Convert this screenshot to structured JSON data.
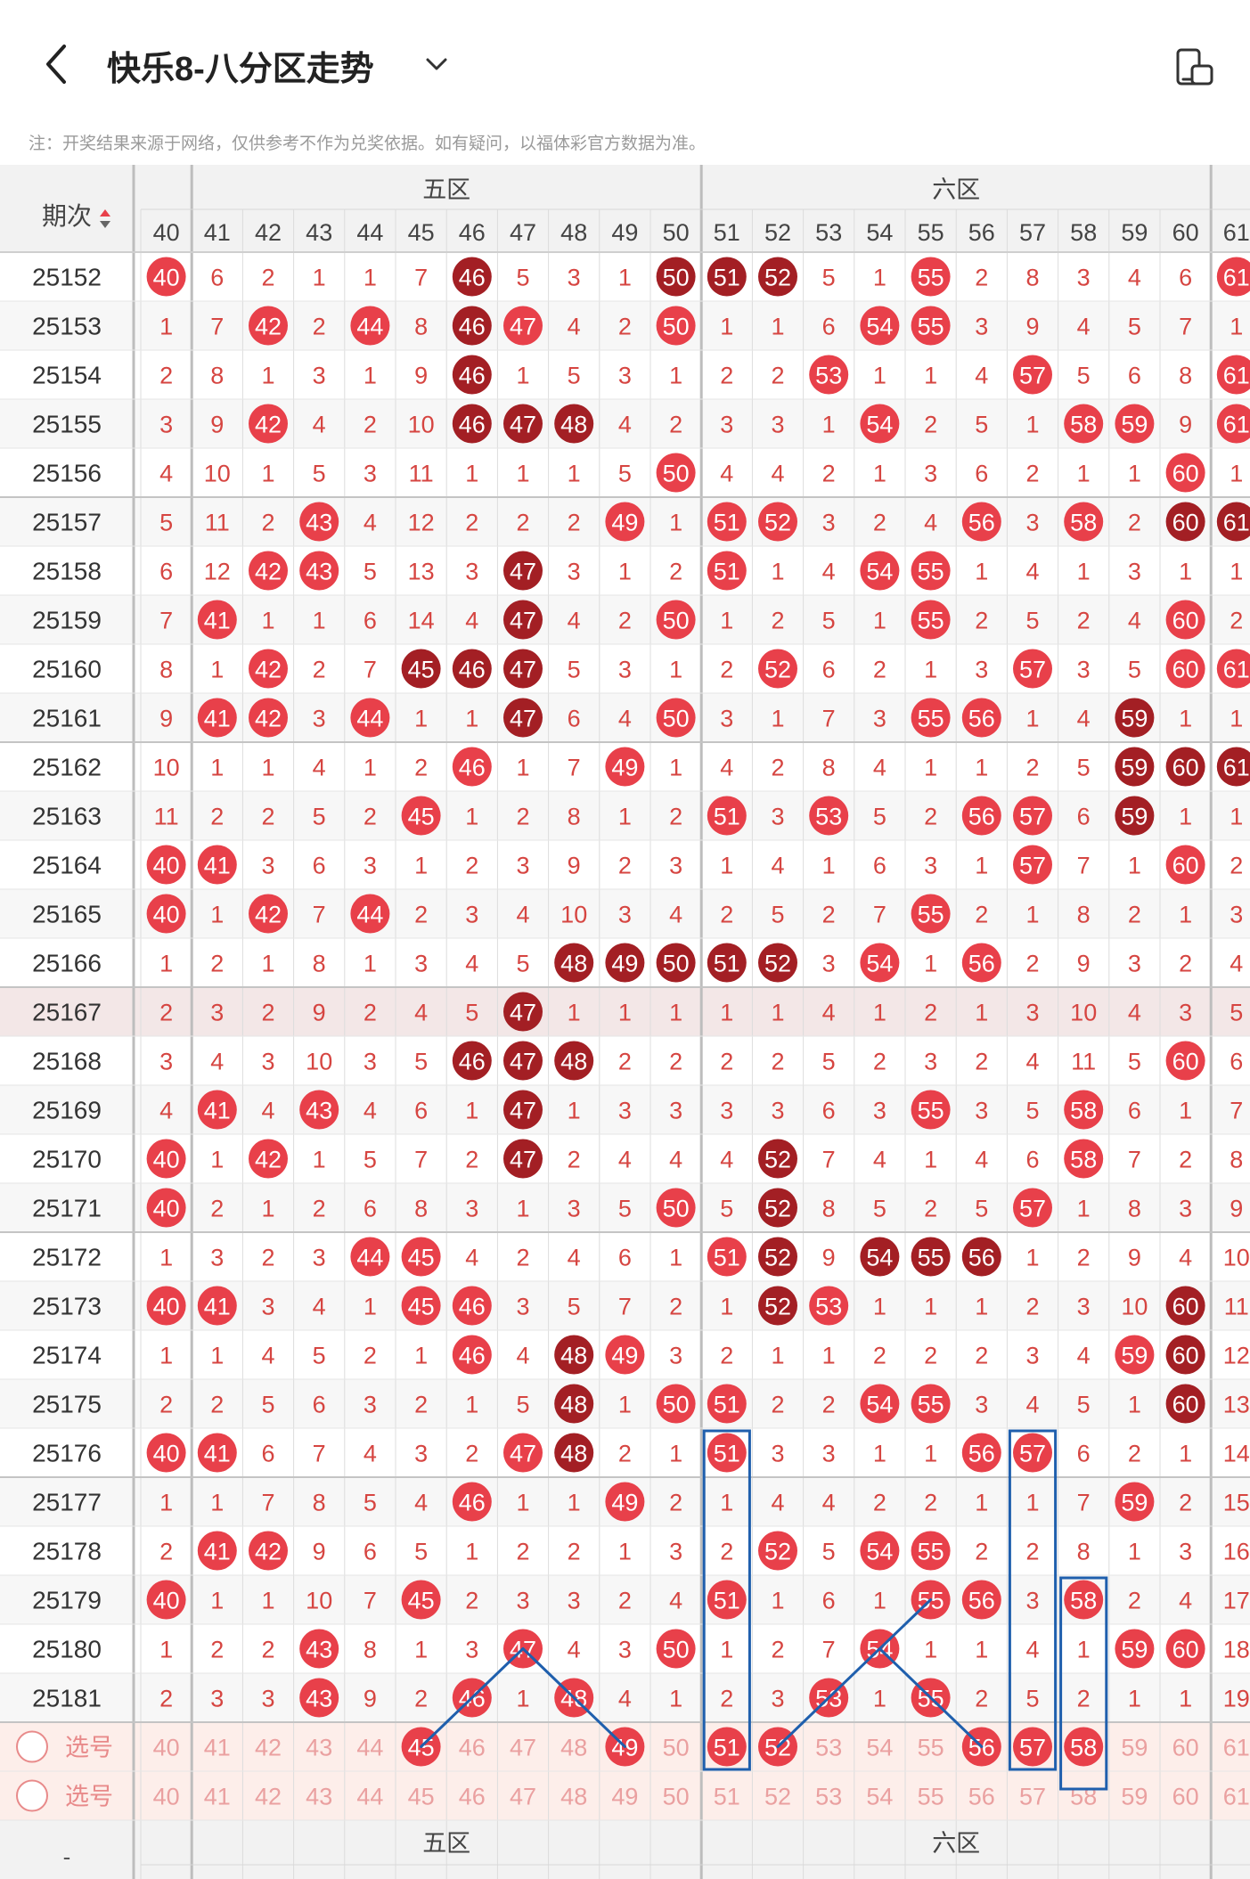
{
  "header": {
    "title": "快乐8-八分区走势",
    "notice": "注：开奖结果来源于网络，仅供参考不作为兑奖依据。如有疑问，以福体彩官方数据为准。",
    "back_icon": "chevron-left-icon",
    "title_dropdown_icon": "chevron-down-icon",
    "orientation_icon": "rotate-screen-icon"
  },
  "table": {
    "period_header": "期次",
    "sort_icon": "sort-up-down-icon",
    "zones": [
      {
        "name": "五区",
        "from": 41,
        "to": 50
      },
      {
        "name": "六区",
        "from": 51,
        "to": 60
      }
    ],
    "columns": [
      40,
      41,
      42,
      43,
      44,
      45,
      46,
      47,
      48,
      49,
      50,
      51,
      52,
      53,
      54,
      55,
      56,
      57,
      58,
      59,
      60,
      61
    ],
    "rows": [
      {
        "period": "25152",
        "cells": [
          "h",
          6,
          2,
          1,
          1,
          7,
          "d",
          "5",
          3,
          1,
          "d",
          "d",
          "d",
          5,
          1,
          "h",
          2,
          8,
          3,
          4,
          6,
          "h"
        ]
      },
      {
        "period": "25153",
        "cells": [
          1,
          7,
          "h",
          2,
          "h",
          8,
          "d",
          "h",
          4,
          2,
          "h",
          1,
          1,
          6,
          "h",
          "h",
          3,
          9,
          4,
          5,
          7,
          1
        ]
      },
      {
        "period": "25154",
        "cells": [
          2,
          8,
          1,
          3,
          1,
          9,
          "d",
          1,
          5,
          3,
          1,
          2,
          2,
          "h",
          1,
          1,
          4,
          "h",
          5,
          6,
          8,
          "h"
        ]
      },
      {
        "period": "25155",
        "cells": [
          3,
          9,
          "h",
          4,
          2,
          10,
          "d",
          "d",
          "d",
          4,
          2,
          3,
          3,
          1,
          "h",
          2,
          5,
          1,
          "h",
          "h",
          9,
          "h"
        ]
      },
      {
        "period": "25156",
        "cells": [
          4,
          10,
          1,
          5,
          3,
          11,
          1,
          1,
          1,
          5,
          "h",
          4,
          4,
          2,
          1,
          3,
          6,
          2,
          1,
          1,
          "h",
          1
        ]
      },
      {
        "period": "25157",
        "cells": [
          5,
          11,
          2,
          "h",
          4,
          12,
          2,
          2,
          2,
          "h",
          1,
          "h",
          "h",
          3,
          2,
          4,
          "h",
          3,
          "h",
          2,
          "d",
          "d"
        ]
      },
      {
        "period": "25158",
        "cells": [
          6,
          12,
          "h",
          "h",
          5,
          13,
          3,
          "d",
          3,
          1,
          2,
          "h",
          1,
          4,
          "h",
          "h",
          1,
          4,
          1,
          3,
          1,
          1
        ]
      },
      {
        "period": "25159",
        "cells": [
          7,
          "h",
          1,
          1,
          6,
          14,
          4,
          "d",
          4,
          2,
          "h",
          1,
          2,
          5,
          1,
          "h",
          2,
          5,
          2,
          4,
          "h",
          2
        ]
      },
      {
        "period": "25160",
        "cells": [
          8,
          1,
          "h",
          2,
          7,
          "d",
          "d",
          "d",
          5,
          3,
          1,
          2,
          "h",
          6,
          2,
          1,
          3,
          "h",
          3,
          5,
          "h",
          "h"
        ]
      },
      {
        "period": "25161",
        "cells": [
          9,
          "h",
          "h",
          3,
          "h",
          1,
          1,
          "d",
          6,
          4,
          "h",
          3,
          1,
          7,
          3,
          "h",
          "h",
          1,
          4,
          "d",
          1,
          1
        ]
      },
      {
        "period": "25162",
        "cells": [
          10,
          1,
          1,
          4,
          1,
          2,
          "h",
          1,
          7,
          "h",
          1,
          4,
          2,
          8,
          4,
          1,
          1,
          2,
          5,
          "d",
          "d",
          "d"
        ]
      },
      {
        "period": "25163",
        "cells": [
          11,
          2,
          2,
          5,
          2,
          "h",
          1,
          2,
          8,
          1,
          2,
          "h",
          3,
          "h",
          5,
          2,
          "h",
          "h",
          6,
          "d",
          1,
          1
        ]
      },
      {
        "period": "25164",
        "cells": [
          "h",
          "h",
          3,
          6,
          3,
          1,
          2,
          3,
          9,
          2,
          3,
          1,
          4,
          1,
          6,
          3,
          1,
          "h",
          7,
          1,
          "h",
          2
        ]
      },
      {
        "period": "25165",
        "cells": [
          "h",
          1,
          "h",
          7,
          "h",
          2,
          3,
          4,
          10,
          3,
          4,
          2,
          5,
          2,
          7,
          "h",
          2,
          1,
          8,
          2,
          1,
          3
        ]
      },
      {
        "period": "25166",
        "cells": [
          1,
          2,
          1,
          8,
          1,
          3,
          4,
          5,
          "d",
          "d",
          "d",
          "d",
          "d",
          3,
          "h",
          1,
          "h",
          2,
          9,
          3,
          2,
          4
        ]
      },
      {
        "period": "25167",
        "cells": [
          2,
          3,
          2,
          9,
          2,
          4,
          5,
          "d",
          1,
          1,
          1,
          1,
          1,
          4,
          1,
          2,
          1,
          3,
          10,
          4,
          3,
          5
        ]
      },
      {
        "period": "25168",
        "cells": [
          3,
          4,
          3,
          10,
          3,
          5,
          "d",
          "d",
          "d",
          2,
          2,
          2,
          2,
          5,
          2,
          3,
          2,
          4,
          11,
          5,
          "h",
          6
        ]
      },
      {
        "period": "25169",
        "cells": [
          4,
          "h",
          4,
          "h",
          4,
          6,
          1,
          "d",
          1,
          3,
          3,
          3,
          3,
          6,
          3,
          "h",
          3,
          5,
          "h",
          6,
          1,
          7
        ]
      },
      {
        "period": "25170",
        "cells": [
          "h",
          1,
          "h",
          1,
          5,
          7,
          2,
          "d",
          2,
          4,
          4,
          4,
          "d",
          7,
          4,
          1,
          4,
          6,
          "h",
          7,
          2,
          8
        ]
      },
      {
        "period": "25171",
        "cells": [
          "h",
          2,
          1,
          2,
          6,
          8,
          3,
          1,
          3,
          5,
          "h",
          5,
          "d",
          8,
          5,
          2,
          5,
          "h",
          1,
          8,
          3,
          9
        ]
      },
      {
        "period": "25172",
        "cells": [
          1,
          3,
          2,
          3,
          "h",
          "h",
          4,
          2,
          4,
          6,
          1,
          "h",
          "d",
          9,
          "d",
          "d",
          "d",
          1,
          2,
          9,
          4,
          10
        ]
      },
      {
        "period": "25173",
        "cells": [
          "h",
          "h",
          3,
          4,
          1,
          "h",
          "h",
          3,
          5,
          7,
          2,
          1,
          "d",
          "h",
          1,
          1,
          1,
          2,
          3,
          10,
          "d",
          11
        ]
      },
      {
        "period": "25174",
        "cells": [
          1,
          1,
          4,
          5,
          2,
          1,
          "h",
          4,
          "d",
          "h",
          3,
          2,
          1,
          1,
          2,
          2,
          2,
          3,
          4,
          "h",
          "d",
          12
        ]
      },
      {
        "period": "25175",
        "cells": [
          2,
          2,
          5,
          6,
          3,
          2,
          1,
          5,
          "d",
          1,
          "h",
          "h",
          2,
          2,
          "h",
          "h",
          3,
          4,
          5,
          1,
          "d",
          13
        ]
      },
      {
        "period": "25176",
        "cells": [
          "h",
          "h",
          6,
          7,
          4,
          3,
          2,
          "h",
          "d",
          2,
          1,
          "h",
          3,
          3,
          1,
          1,
          "h",
          "h",
          6,
          2,
          1,
          14
        ]
      },
      {
        "period": "25177",
        "cells": [
          1,
          1,
          7,
          8,
          5,
          4,
          "h",
          1,
          1,
          "h",
          2,
          1,
          4,
          4,
          2,
          2,
          1,
          1,
          7,
          "h",
          2,
          15
        ]
      },
      {
        "period": "25178",
        "cells": [
          2,
          "h",
          "h",
          9,
          6,
          5,
          1,
          2,
          2,
          1,
          3,
          2,
          "h",
          5,
          "h",
          "h",
          2,
          2,
          8,
          1,
          3,
          16
        ]
      },
      {
        "period": "25179",
        "cells": [
          "h",
          1,
          1,
          10,
          7,
          "h",
          2,
          3,
          3,
          2,
          4,
          "h",
          1,
          6,
          1,
          "h",
          "h",
          3,
          "h",
          2,
          4,
          17
        ]
      },
      {
        "period": "25180",
        "cells": [
          1,
          2,
          2,
          "h",
          8,
          1,
          3,
          "h",
          4,
          3,
          "h",
          1,
          2,
          7,
          "h",
          1,
          1,
          4,
          1,
          "h",
          "h",
          18
        ]
      },
      {
        "period": "25181",
        "cells": [
          2,
          3,
          3,
          "h",
          9,
          2,
          "h",
          1,
          "h",
          4,
          1,
          2,
          3,
          "h",
          1,
          "h",
          2,
          5,
          2,
          1,
          1,
          19
        ]
      }
    ],
    "select_rows": [
      {
        "label": "选号",
        "radio_icon": "radio-circle-icon",
        "selected": [
          45,
          49,
          51,
          52,
          56,
          57,
          58
        ]
      },
      {
        "label": "选号",
        "radio_icon": "radio-circle-icon",
        "selected": []
      }
    ],
    "footer_period": "-"
  },
  "colors": {
    "hit": "#e8404a",
    "hit_dark": "#a31f24",
    "number_text": "#d64541",
    "header_bg": "#f2f2f2",
    "select_bg": "#fdeeea",
    "row_highlight": "#f3e7e7",
    "annotation": "#1f5fad"
  }
}
